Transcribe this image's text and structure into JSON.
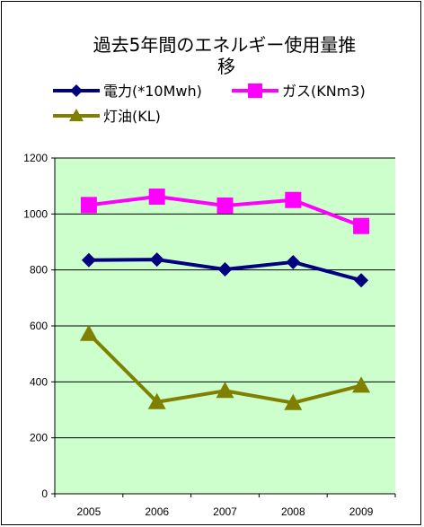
{
  "chart_data": {
    "type": "line",
    "title_lines": [
      "過去5年間のエネルギー使用量推",
      "移"
    ],
    "categories": [
      "2005",
      "2006",
      "2007",
      "2008",
      "2009"
    ],
    "series": [
      {
        "name": "電力(*10Mwh)",
        "values": [
          835,
          837,
          802,
          828,
          763
        ],
        "color": "#000080",
        "marker": "diamond"
      },
      {
        "name": "ガス(KNm3)",
        "values": [
          1032,
          1062,
          1030,
          1050,
          957
        ],
        "color": "#FF00FF",
        "marker": "square"
      },
      {
        "name": "灯油(KL)",
        "values": [
          572,
          328,
          368,
          325,
          387
        ],
        "color": "#808000",
        "marker": "triangle"
      }
    ],
    "ylim": [
      0,
      1200
    ],
    "yticks": [
      0,
      200,
      400,
      600,
      800,
      1000,
      1200
    ],
    "grid": true,
    "plot_background": "#CCFFCC",
    "legend_position": "top"
  }
}
